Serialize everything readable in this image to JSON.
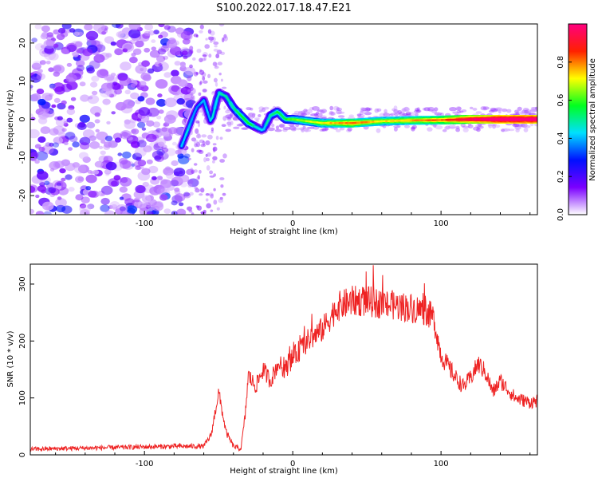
{
  "title": "S100.2022.017.18.47.E21",
  "chart_data": [
    {
      "type": "heatmap",
      "title": "S100.2022.017.18.47.E21",
      "xlabel": "Height of straight line (km)",
      "ylabel": "Frequency (Hz)",
      "xlim": [
        -177,
        165
      ],
      "ylim": [
        -25,
        25
      ],
      "x_ticks": [
        -100,
        0,
        100
      ],
      "y_ticks": [
        -20,
        -10,
        0,
        10,
        20
      ],
      "colorbar": {
        "label": "Normalized spectral amplitude",
        "range": [
          0,
          1
        ],
        "ticks": [
          "0.0",
          "0.2",
          "0.4",
          "0.6",
          "0.8"
        ],
        "colors": [
          "#ffffff",
          "#7b00ff",
          "#0010ff",
          "#00e0ff",
          "#00ff20",
          "#ffff00",
          "#ff2000",
          "#ff0080"
        ]
      },
      "ridge": {
        "x": [
          -75,
          -70,
          -65,
          -60,
          -55,
          -50,
          -45,
          -40,
          -35,
          -30,
          -25,
          -20,
          -15,
          -10,
          -5,
          0,
          20,
          40,
          60,
          80,
          100,
          120,
          140,
          165
        ],
        "y": [
          -7,
          -2,
          3,
          5,
          -1,
          7,
          6,
          3,
          1,
          -1,
          -2,
          -3,
          1,
          2,
          0,
          0,
          -1,
          -1,
          -0.5,
          -0.3,
          -0.2,
          0,
          0,
          0
        ],
        "amplitude": [
          0.3,
          0.3,
          0.25,
          0.3,
          0.3,
          0.35,
          0.35,
          0.4,
          0.45,
          0.45,
          0.35,
          0.3,
          0.4,
          0.45,
          0.45,
          0.5,
          0.6,
          0.7,
          0.6,
          0.65,
          0.7,
          0.85,
          0.95,
          0.95
        ]
      }
    },
    {
      "type": "line",
      "xlabel": "Height of straight line (km)",
      "ylabel": "SNR (10 * v/v)",
      "xlim": [
        -177,
        165
      ],
      "ylim": [
        0,
        335
      ],
      "x_ticks": [
        -100,
        0,
        100
      ],
      "y_ticks": [
        0,
        100,
        200,
        300
      ],
      "color": "#ee2222",
      "series": [
        {
          "x": [
            -177,
            -80,
            -60,
            -55,
            -50,
            -45,
            -40,
            -35,
            -32,
            -30,
            -25,
            -20,
            -15,
            -10,
            -5,
            0,
            10,
            20,
            30,
            40,
            50,
            60,
            70,
            80,
            90,
            95,
            100,
            110,
            115,
            120,
            125,
            130,
            135,
            140,
            145,
            150,
            160,
            165
          ],
          "y": [
            10,
            15,
            15,
            35,
            110,
            40,
            15,
            10,
            70,
            140,
            120,
            150,
            130,
            160,
            150,
            170,
            200,
            220,
            260,
            270,
            270,
            265,
            262,
            258,
            252,
            240,
            175,
            135,
            120,
            135,
            160,
            145,
            110,
            130,
            115,
            100,
            92,
            95
          ]
        }
      ]
    }
  ]
}
